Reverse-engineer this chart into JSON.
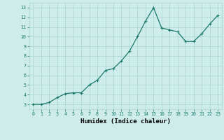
{
  "x": [
    0,
    1,
    2,
    3,
    4,
    5,
    6,
    7,
    8,
    9,
    10,
    11,
    12,
    13,
    14,
    15,
    16,
    17,
    18,
    19,
    20,
    21,
    22,
    23
  ],
  "y": [
    3,
    3,
    3.2,
    3.7,
    4.1,
    4.2,
    4.2,
    5.0,
    5.5,
    6.5,
    6.7,
    7.5,
    8.5,
    10.0,
    11.6,
    13.0,
    10.9,
    10.7,
    10.5,
    9.5,
    9.5,
    10.3,
    11.3,
    12.2
  ],
  "xlabel": "Humidex (Indice chaleur)",
  "line_color": "#1a7a6a",
  "marker": "+",
  "marker_size": 3.5,
  "marker_edge_width": 0.8,
  "background_color": "#ceecea",
  "grid_color": "#a8d4d0",
  "xlim": [
    -0.5,
    23.5
  ],
  "ylim": [
    2.5,
    13.5
  ],
  "yticks": [
    3,
    4,
    5,
    6,
    7,
    8,
    9,
    10,
    11,
    12,
    13
  ],
  "xticks": [
    0,
    1,
    2,
    3,
    4,
    5,
    6,
    7,
    8,
    9,
    10,
    11,
    12,
    13,
    14,
    15,
    16,
    17,
    18,
    19,
    20,
    21,
    22,
    23
  ],
  "tick_fontsize": 4.8,
  "xlabel_fontsize": 6.5,
  "line_width": 0.9
}
